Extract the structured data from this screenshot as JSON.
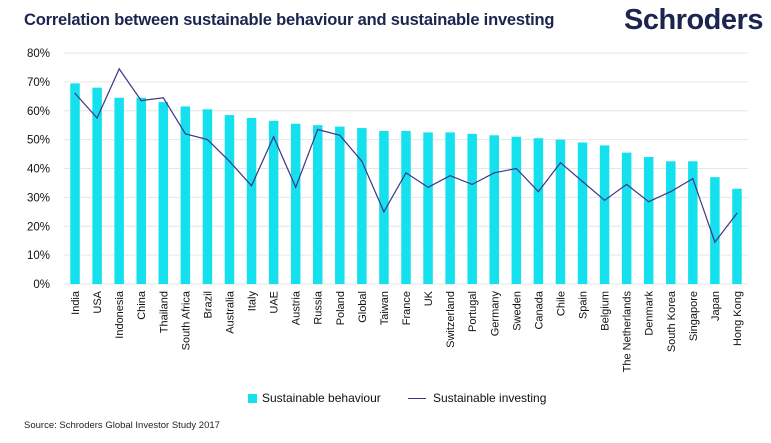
{
  "header": {
    "title": "Correlation between sustainable behaviour and sustainable investing",
    "logo": "Schroders"
  },
  "colors": {
    "bar": "#15e1ee",
    "line": "#3d3587",
    "title": "#1b2550",
    "grid": "#e6e6e6"
  },
  "chart_data": {
    "type": "bar",
    "title": "Correlation between sustainable behaviour and sustainable investing",
    "xlabel": "",
    "ylabel": "",
    "ylim": [
      0,
      80
    ],
    "yticks": [
      0,
      10,
      20,
      30,
      40,
      50,
      60,
      70,
      80
    ],
    "ytick_labels": [
      "0%",
      "10%",
      "20%",
      "30%",
      "40%",
      "50%",
      "60%",
      "70%",
      "80%"
    ],
    "grid": true,
    "legend_position": "bottom",
    "categories": [
      "India",
      "USA",
      "Indonesia",
      "China",
      "Thailand",
      "South Africa",
      "Brazil",
      "Australia",
      "Italy",
      "UAE",
      "Austria",
      "Russia",
      "Poland",
      "Global",
      "Taiwan",
      "France",
      "UK",
      "Switzerland",
      "Portugal",
      "Germany",
      "Sweden",
      "Canada",
      "Chile",
      "Spain",
      "Belgium",
      "The Netherlands",
      "Denmark",
      "South Korea",
      "Singapore",
      "Japan",
      "Hong Kong"
    ],
    "series": [
      {
        "name": "Sustainable behaviour",
        "type": "bar",
        "values": [
          69.5,
          68,
          64.5,
          64.5,
          63,
          61.5,
          60.5,
          58.5,
          57.5,
          56.5,
          55.5,
          55,
          54.5,
          54,
          53,
          53,
          52.5,
          52.5,
          52,
          51.5,
          51,
          50.5,
          50,
          49,
          48,
          45.5,
          44,
          42.5,
          42.5,
          37,
          33
        ]
      },
      {
        "name": "Sustainable investing",
        "type": "line",
        "values": [
          66,
          57.5,
          74.5,
          63.5,
          64.5,
          52,
          50,
          42.5,
          34,
          51,
          33.5,
          53.5,
          51.5,
          42.5,
          25,
          38.5,
          33.5,
          37.5,
          34.5,
          38.5,
          40,
          32,
          42,
          35.5,
          29,
          34.5,
          28.5,
          32,
          36.5,
          14.5,
          24.5
        ]
      }
    ]
  },
  "legend": {
    "items": [
      {
        "label": "Sustainable behaviour"
      },
      {
        "label": "Sustainable investing"
      }
    ]
  },
  "footer": {
    "source": "Source: Schroders Global Investor Study 2017"
  }
}
